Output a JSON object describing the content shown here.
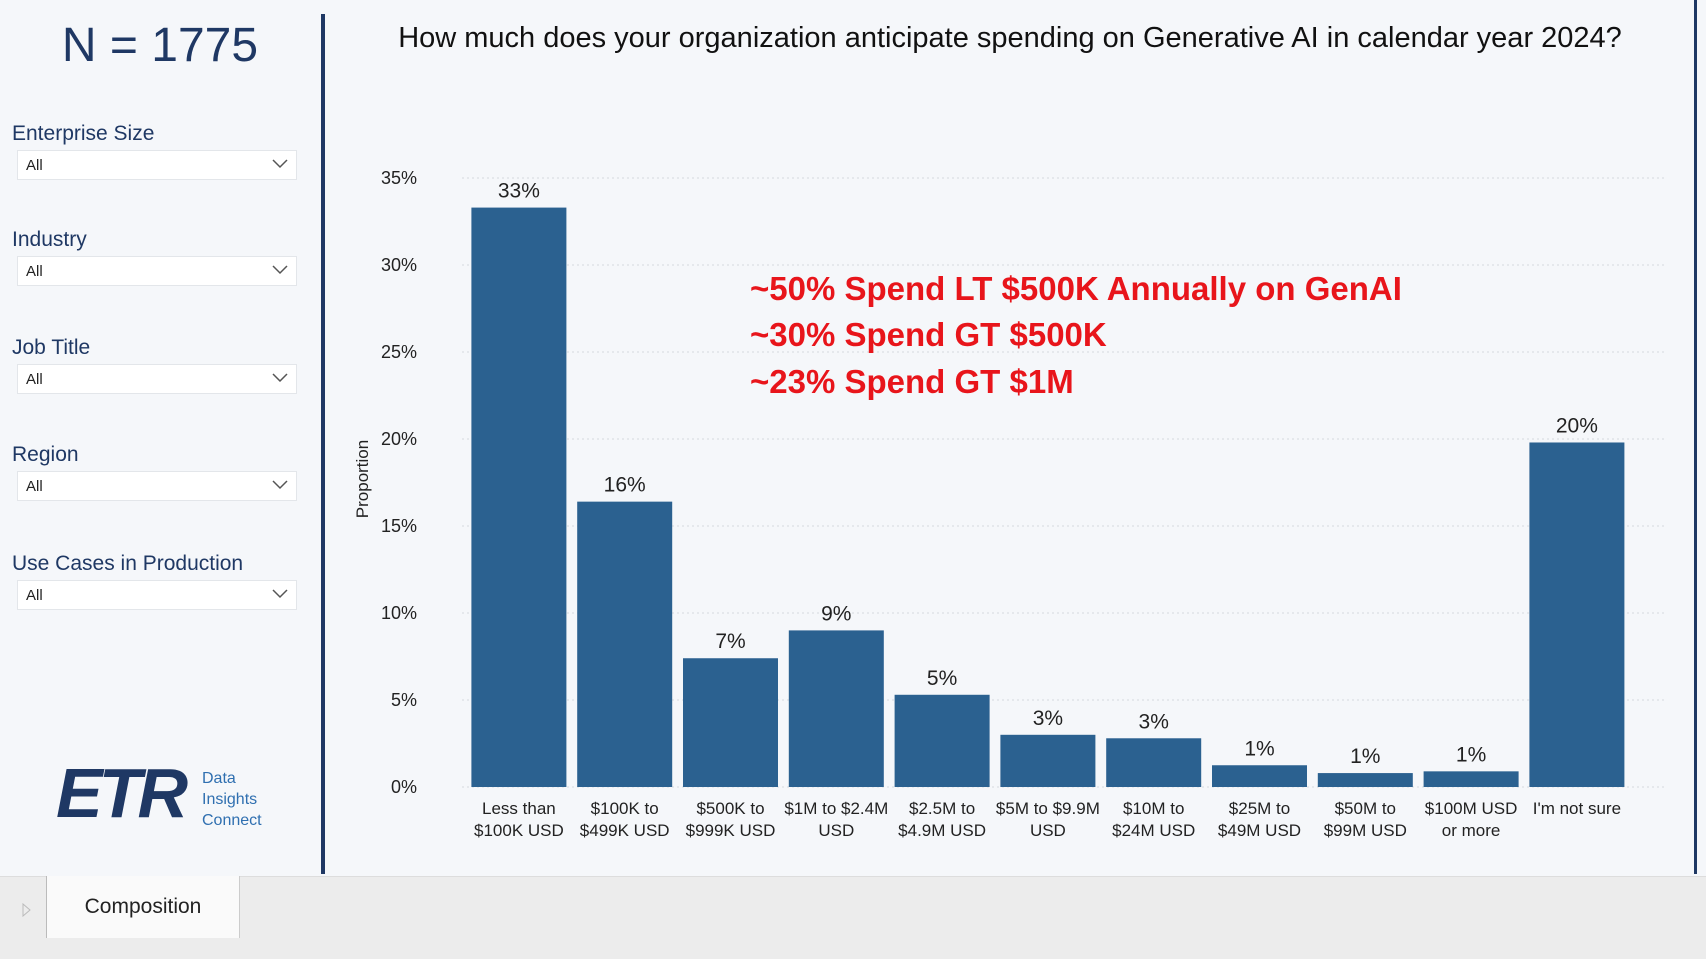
{
  "sidebar": {
    "sample_size": "N = 1775",
    "filters": [
      {
        "label": "Enterprise Size",
        "value": "All"
      },
      {
        "label": "Industry",
        "value": "All"
      },
      {
        "label": "Job Title",
        "value": "All"
      },
      {
        "label": "Region",
        "value": "All"
      },
      {
        "label": "Use Cases in Production",
        "value": "All"
      }
    ],
    "logo": {
      "mark": "ETR",
      "lines": [
        "Data",
        "Insights",
        "Connect"
      ]
    }
  },
  "tabs": [
    "Composition"
  ],
  "chart_data": {
    "type": "bar",
    "title": "How much does your organization anticipate spending on Generative AI in calendar year 2024?",
    "y_label": "Proportion",
    "categories": [
      "Less than $100K USD",
      "$100K to $499K USD",
      "$500K to $999K USD",
      "$1M to $2.4M USD",
      "$2.5M to $4.9M USD",
      "$5M to $9.9M USD",
      "$10M to $24M USD",
      "$25M to $49M USD",
      "$50M to $99M USD",
      "$100M USD or more",
      "I'm not sure"
    ],
    "values": [
      33.3,
      16.4,
      7.4,
      9.0,
      5.3,
      3.0,
      2.8,
      1.25,
      0.8,
      0.9,
      19.8
    ],
    "value_labels": [
      "33%",
      "16%",
      "7%",
      "9%",
      "5%",
      "3%",
      "3%",
      "1%",
      "1%",
      "1%",
      "20%"
    ],
    "color": "#2b6190",
    "ylim": [
      0,
      35
    ],
    "yticks": [
      {
        "value": 0,
        "label": "0%"
      },
      {
        "value": 5,
        "label": "5%"
      },
      {
        "value": 10,
        "label": "10%"
      },
      {
        "value": 15,
        "label": "15%"
      },
      {
        "value": 20,
        "label": "20%"
      },
      {
        "value": 25,
        "label": "25%"
      },
      {
        "value": 30,
        "label": "30%"
      },
      {
        "value": 35,
        "label": "35%"
      }
    ],
    "grid": true,
    "annotations": [
      "~50% Spend LT $500K Annually on GenAI",
      "~30% Spend GT $500K",
      "~23% Spend GT $1M"
    ]
  }
}
